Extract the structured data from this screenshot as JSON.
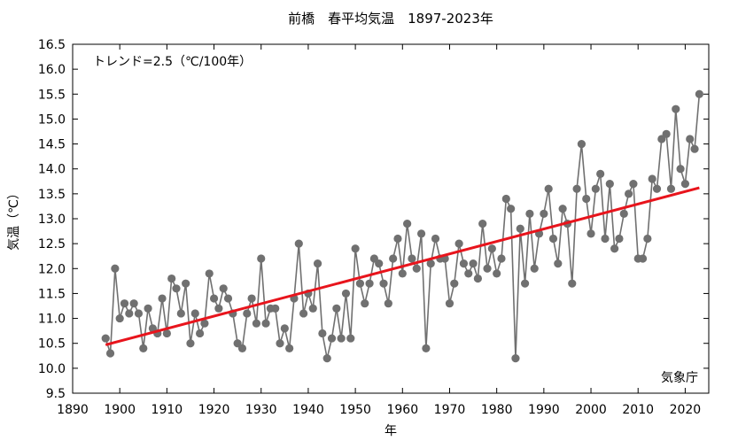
{
  "chart_data": {
    "type": "line",
    "title": "前橋　春平均気温　1897-2023年",
    "xlabel": "年",
    "ylabel": "気温（℃）",
    "xlim": [
      1890,
      2025
    ],
    "ylim": [
      9.5,
      16.5
    ],
    "xticks": [
      1890,
      1900,
      1910,
      1920,
      1930,
      1940,
      1950,
      1960,
      1970,
      1980,
      1990,
      2000,
      2010,
      2020
    ],
    "yticks": [
      9.5,
      10.0,
      10.5,
      11.0,
      11.5,
      12.0,
      12.5,
      13.0,
      13.5,
      14.0,
      14.5,
      15.0,
      15.5,
      16.0,
      16.5
    ],
    "grid": false,
    "trend_label": "トレンド=2.5（℃/100年）",
    "source_label": "気象庁",
    "series_color": "#707070",
    "trend_color": "#e8141c",
    "trend": {
      "x": [
        1897,
        2023
      ],
      "y": [
        10.47,
        13.62
      ]
    },
    "x": [
      1897,
      1898,
      1899,
      1900,
      1901,
      1902,
      1903,
      1904,
      1905,
      1906,
      1907,
      1908,
      1909,
      1910,
      1911,
      1912,
      1913,
      1914,
      1915,
      1916,
      1917,
      1918,
      1919,
      1920,
      1921,
      1922,
      1923,
      1924,
      1925,
      1926,
      1927,
      1928,
      1929,
      1930,
      1931,
      1932,
      1933,
      1934,
      1935,
      1936,
      1937,
      1938,
      1939,
      1940,
      1941,
      1942,
      1943,
      1944,
      1945,
      1946,
      1947,
      1948,
      1949,
      1950,
      1951,
      1952,
      1953,
      1954,
      1955,
      1956,
      1957,
      1958,
      1959,
      1960,
      1961,
      1962,
      1963,
      1964,
      1965,
      1966,
      1967,
      1968,
      1969,
      1970,
      1971,
      1972,
      1973,
      1974,
      1975,
      1976,
      1977,
      1978,
      1979,
      1980,
      1981,
      1982,
      1983,
      1984,
      1985,
      1986,
      1987,
      1988,
      1989,
      1990,
      1991,
      1992,
      1993,
      1994,
      1995,
      1996,
      1997,
      1998,
      1999,
      2000,
      2001,
      2002,
      2003,
      2004,
      2005,
      2006,
      2007,
      2008,
      2009,
      2010,
      2011,
      2012,
      2013,
      2014,
      2015,
      2016,
      2017,
      2018,
      2019,
      2020,
      2021,
      2022,
      2023
    ],
    "values": [
      10.6,
      10.3,
      12.0,
      11.0,
      11.3,
      11.1,
      11.3,
      11.1,
      10.4,
      11.2,
      10.8,
      10.7,
      11.4,
      10.7,
      11.8,
      11.6,
      11.1,
      11.7,
      10.5,
      11.1,
      10.7,
      10.9,
      11.9,
      11.4,
      11.2,
      11.6,
      11.4,
      11.1,
      10.5,
      10.4,
      11.1,
      11.4,
      10.9,
      12.2,
      10.9,
      11.2,
      11.2,
      10.5,
      10.8,
      10.4,
      11.4,
      12.5,
      11.1,
      11.5,
      11.2,
      12.1,
      10.7,
      10.2,
      10.6,
      11.2,
      10.6,
      11.5,
      10.6,
      12.4,
      11.7,
      11.3,
      11.7,
      12.2,
      12.1,
      11.7,
      11.3,
      12.2,
      12.6,
      11.9,
      12.9,
      12.2,
      12.0,
      12.7,
      10.4,
      12.1,
      12.6,
      12.2,
      12.2,
      11.3,
      11.7,
      12.5,
      12.1,
      11.9,
      12.1,
      11.8,
      12.9,
      12.0,
      12.4,
      11.9,
      12.2,
      13.4,
      13.2,
      10.2,
      12.8,
      11.7,
      13.1,
      12.0,
      12.7,
      13.1,
      13.6,
      12.6,
      12.1,
      13.2,
      12.9,
      11.7,
      13.6,
      14.5,
      13.4,
      12.7,
      13.6,
      13.9,
      12.6,
      13.7,
      12.4,
      12.6,
      13.1,
      13.5,
      13.7,
      12.2,
      12.2,
      12.6,
      13.8,
      13.6,
      14.6,
      14.7,
      13.6,
      15.2,
      14.0,
      13.7,
      14.6,
      14.4,
      15.5
    ]
  }
}
